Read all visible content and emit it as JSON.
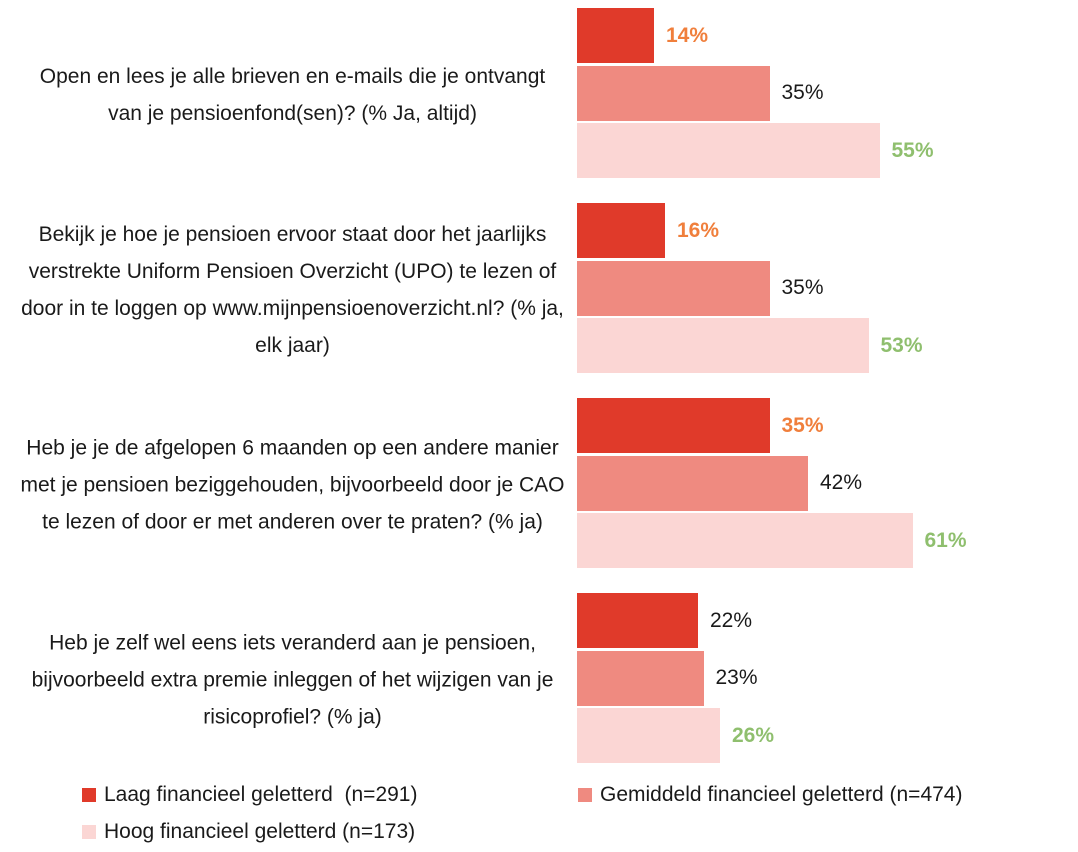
{
  "chart_data": {
    "type": "bar",
    "orientation": "horizontal",
    "categories": [
      "Open en lees je alle brieven en e-mails die je ontvangt van je pensioenfond(sen)? (% Ja, altijd)",
      "Bekijk je hoe je pensioen ervoor staat door het jaarlijks verstrekte Uniform Pensioen Overzicht (UPO) te lezen of door in te loggen op www.mijnpensioenoverzicht.nl? (% ja, elk jaar)",
      "Heb je je de afgelopen 6 maanden op een andere manier met je pensioen beziggehouden, bijvoorbeeld door je CAO te lezen of door er met anderen over te praten? (% ja)",
      "Heb je zelf wel eens iets veranderd aan je pensioen, bijvoorbeeld extra premie inleggen of het wijzigen van je risicoprofiel? (% ja)"
    ],
    "series": [
      {
        "name": "Laag financieel geletterd  (n=291)",
        "color": "#e03a2a",
        "values": [
          14,
          16,
          35,
          22
        ],
        "value_labels": [
          "14%",
          "16%",
          "35%",
          "22%"
        ],
        "value_label_colors": [
          "#f07f3c",
          "#f07f3c",
          "#f07f3c",
          "#1a1a1a"
        ]
      },
      {
        "name": "Gemiddeld financieel geletterd (n=474)",
        "color": "#ef8a80",
        "values": [
          35,
          35,
          42,
          23
        ],
        "value_labels": [
          "35%",
          "35%",
          "42%",
          "23%"
        ],
        "value_label_colors": [
          "#1a1a1a",
          "#1a1a1a",
          "#1a1a1a",
          "#1a1a1a"
        ]
      },
      {
        "name": "Hoog financieel geletterd (n=173)",
        "color": "#fbd6d4",
        "values": [
          55,
          53,
          61,
          26
        ],
        "value_labels": [
          "55%",
          "53%",
          "61%",
          "26%"
        ],
        "value_label_colors": [
          "#8fbf6e",
          "#8fbf6e",
          "#8fbf6e",
          "#8fbf6e"
        ]
      }
    ],
    "legend": "bottom"
  }
}
